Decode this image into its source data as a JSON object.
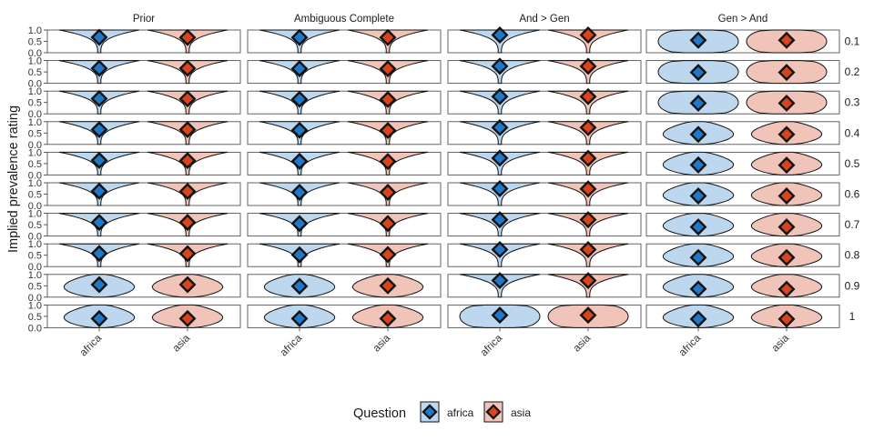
{
  "chart_data": {
    "type": "violin",
    "facet_columns": [
      "Prior",
      "Ambiguous Complete",
      "And > Gen",
      "Gen > And"
    ],
    "facet_rows": [
      "0.1",
      "0.2",
      "0.3",
      "0.4",
      "0.5",
      "0.6",
      "0.7",
      "0.8",
      "0.9",
      "1"
    ],
    "categories": [
      "africa",
      "asia"
    ],
    "ylabel": "Implied prevalence rating",
    "xlabel": "",
    "ylim": [
      0,
      1
    ],
    "y_ticks": [
      "0.0",
      "0.5",
      "1.0"
    ],
    "legend": {
      "title": "Question",
      "position": "bottom",
      "items": [
        {
          "label": "africa",
          "fill": "#bdd7ee",
          "marker": "#1f78c8"
        },
        {
          "label": "asia",
          "fill": "#f0c4b8",
          "marker": "#d9451b"
        }
      ]
    },
    "grid": false,
    "series": [
      {
        "name": "africa",
        "facet": "Prior",
        "means": [
          0.68,
          0.66,
          0.67,
          0.65,
          0.64,
          0.63,
          0.6,
          0.58,
          0.55,
          0.4
        ]
      },
      {
        "name": "asia",
        "facet": "Prior",
        "means": [
          0.67,
          0.66,
          0.66,
          0.65,
          0.63,
          0.62,
          0.6,
          0.57,
          0.55,
          0.4
        ]
      },
      {
        "name": "africa",
        "facet": "Ambiguous Complete",
        "means": [
          0.67,
          0.64,
          0.64,
          0.62,
          0.6,
          0.58,
          0.55,
          0.52,
          0.48,
          0.4
        ]
      },
      {
        "name": "asia",
        "facet": "Ambiguous Complete",
        "means": [
          0.67,
          0.64,
          0.63,
          0.61,
          0.59,
          0.58,
          0.55,
          0.53,
          0.5,
          0.4
        ]
      },
      {
        "name": "africa",
        "facet": "And > Gen",
        "means": [
          0.78,
          0.75,
          0.76,
          0.74,
          0.74,
          0.74,
          0.72,
          0.75,
          0.73,
          0.55
        ]
      },
      {
        "name": "asia",
        "facet": "And > Gen",
        "means": [
          0.78,
          0.75,
          0.76,
          0.74,
          0.73,
          0.73,
          0.72,
          0.75,
          0.73,
          0.55
        ]
      },
      {
        "name": "africa",
        "facet": "Gen > And",
        "means": [
          0.55,
          0.48,
          0.47,
          0.44,
          0.44,
          0.42,
          0.4,
          0.4,
          0.36,
          0.38
        ]
      },
      {
        "name": "asia",
        "facet": "Gen > And",
        "means": [
          0.55,
          0.48,
          0.47,
          0.44,
          0.43,
          0.42,
          0.4,
          0.4,
          0.35,
          0.38
        ]
      }
    ]
  }
}
